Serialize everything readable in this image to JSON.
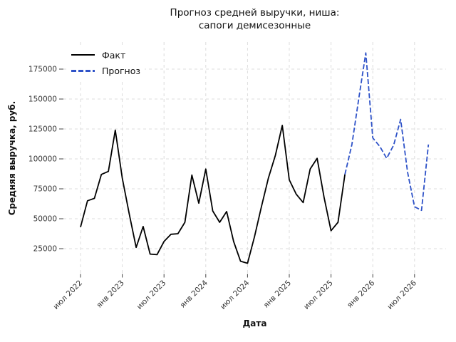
{
  "title": {
    "line1": "Прогноз средней выручки, ниша:",
    "line2": "сапоги демисезонные"
  },
  "chart_data": {
    "type": "line",
    "title": "Прогноз средней выручки, ниша: сапоги демисезонные",
    "xlabel": "Дата",
    "ylabel": "Средняя выручка, руб.",
    "grid": true,
    "grid_style": "dashed-light-gray",
    "legend_position": "upper-left",
    "ylim": [
      4000,
      197000
    ],
    "y_ticks": [
      25000,
      50000,
      75000,
      100000,
      125000,
      150000,
      175000
    ],
    "x_ticks": [
      {
        "i": 0,
        "label": "июл 2022"
      },
      {
        "i": 6,
        "label": "янв 2023"
      },
      {
        "i": 12,
        "label": "июл 2023"
      },
      {
        "i": 18,
        "label": "янв 2024"
      },
      {
        "i": 24,
        "label": "июл 2024"
      },
      {
        "i": 30,
        "label": "янв 2025"
      },
      {
        "i": 36,
        "label": "июл 2025"
      },
      {
        "i": 42,
        "label": "янв 2026"
      },
      {
        "i": 48,
        "label": "июл 2026"
      }
    ],
    "x_axis_note": "monthly points, index 0 = июл 2022, index 50 = сен 2026",
    "series": [
      {
        "name": "Факт",
        "color": "#000000",
        "style": "solid",
        "start_index": 0,
        "values": [
          43000,
          65000,
          67000,
          87000,
          89500,
          124000,
          84000,
          54000,
          26000,
          43500,
          20500,
          20000,
          31000,
          37000,
          37500,
          47000,
          86500,
          63000,
          91500,
          56500,
          47000,
          56000,
          31000,
          14500,
          12800,
          35000,
          60000,
          84000,
          103000,
          128000,
          82500,
          70500,
          63500,
          91500,
          100500,
          68000,
          40000,
          47000,
          87000
        ]
      },
      {
        "name": "Прогноз",
        "color": "#2e52c8",
        "style": "dashed",
        "start_index": 38,
        "values": [
          87000,
          112000,
          151000,
          188500,
          117500,
          110500,
          100500,
          111500,
          133000,
          89000,
          60000,
          57000,
          112000
        ]
      }
    ],
    "colors": {
      "fact_line": "#000000",
      "forecast_line": "#2e52c8",
      "grid": "#dcdcdc",
      "tick_text": "#333333",
      "tick_mark": "#444444",
      "background": "#ffffff"
    }
  },
  "legend": {
    "fact_label": "Факт",
    "forecast_label": "Прогноз"
  }
}
